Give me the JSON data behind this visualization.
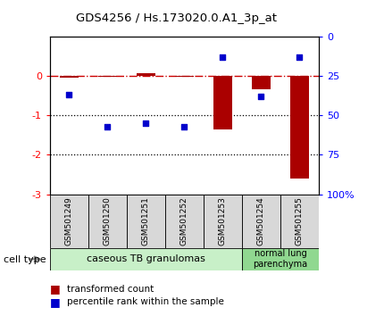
{
  "title": "GDS4256 / Hs.173020.0.A1_3p_at",
  "samples": [
    "GSM501249",
    "GSM501250",
    "GSM501251",
    "GSM501252",
    "GSM501253",
    "GSM501254",
    "GSM501255"
  ],
  "transformed_count": [
    -0.05,
    -0.02,
    0.07,
    -0.02,
    -1.35,
    -0.35,
    -2.6
  ],
  "percentile_rank_pct": [
    37,
    57,
    55,
    57,
    13,
    38,
    13
  ],
  "left_ylim": [
    -3,
    1
  ],
  "left_yticks": [
    0,
    -1,
    -2,
    -3
  ],
  "right_yticks_pct": [
    100,
    75,
    50,
    25,
    0
  ],
  "right_ytick_labels": [
    "100%",
    "75",
    "50",
    "25",
    "0"
  ],
  "cell_type_groups": [
    {
      "label": "caseous TB granulomas",
      "n_samples": 5,
      "color": "#c8f0c8"
    },
    {
      "label": "normal lung\nparenchyma",
      "n_samples": 2,
      "color": "#90d890"
    }
  ],
  "bar_color": "#aa0000",
  "scatter_color": "#0000cc",
  "ref_line_color": "#cc0000",
  "dotted_line_color": "#000000",
  "background_color": "#ffffff",
  "legend_square_red": "#aa0000",
  "legend_square_blue": "#0000cc",
  "bar_width": 0.5,
  "cell_type_label": "cell type"
}
